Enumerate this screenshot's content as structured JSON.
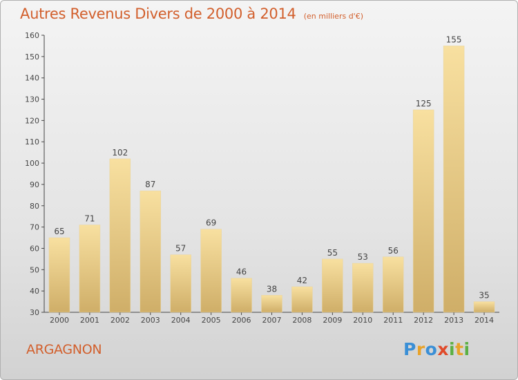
{
  "header": {
    "title": "Autres Revenus Divers de 2000 à 2014",
    "subtitle": "(en milliers d'€)"
  },
  "footer": {
    "commune": "ARGAGNON",
    "brand_letters": [
      "P",
      "r",
      "o",
      "x",
      "i",
      "t",
      "i"
    ],
    "brand_colors": [
      "#3a8fd6",
      "#e8a32a",
      "#3a8fd6",
      "#e04a2a",
      "#5bb043",
      "#e8a32a",
      "#5bb043"
    ]
  },
  "chart_data": {
    "type": "bar",
    "title": "Autres Revenus Divers de 2000 à 2014",
    "subtitle": "(en milliers d'€)",
    "categories": [
      "2000",
      "2001",
      "2002",
      "2003",
      "2004",
      "2005",
      "2006",
      "2007",
      "2008",
      "2009",
      "2010",
      "2011",
      "2012",
      "2013",
      "2014"
    ],
    "values": [
      65,
      71,
      102,
      87,
      57,
      69,
      46,
      38,
      42,
      55,
      53,
      56,
      125,
      155,
      35
    ],
    "ylim": [
      30,
      160
    ],
    "yticks": [
      30,
      40,
      50,
      60,
      70,
      80,
      90,
      100,
      110,
      120,
      130,
      140,
      150,
      160
    ],
    "grid": false,
    "data_labels": true,
    "colors": {
      "bar_light": "#f8e0a0",
      "bar_dark": "#cfae68",
      "axis": "#444444",
      "text": "#444444"
    }
  }
}
